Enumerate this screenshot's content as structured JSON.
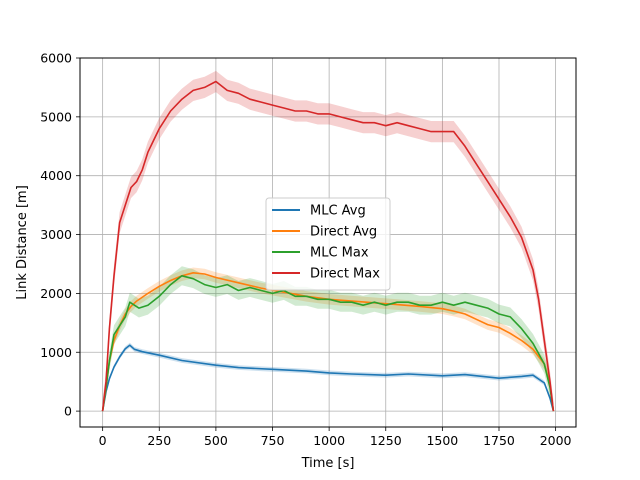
{
  "chart_data": {
    "type": "line",
    "title": "",
    "xlabel": "Time [s]",
    "ylabel": "Link Distance [m]",
    "xlim": [
      -100,
      2090
    ],
    "ylim": [
      -270,
      6000
    ],
    "x_ticks": [
      0,
      250,
      500,
      750,
      1000,
      1250,
      1500,
      1750,
      2000
    ],
    "y_ticks": [
      0,
      1000,
      2000,
      3000,
      4000,
      5000,
      6000
    ],
    "grid": true,
    "legend_position": "center",
    "series": [
      {
        "name": "MLC Avg",
        "color": "#1f77b4",
        "x": [
          0,
          15,
          30,
          50,
          75,
          100,
          120,
          140,
          175,
          250,
          350,
          500,
          600,
          750,
          900,
          1000,
          1100,
          1250,
          1350,
          1500,
          1600,
          1750,
          1850,
          1900,
          1950,
          1975,
          1990
        ],
        "y": [
          0,
          330,
          550,
          750,
          920,
          1060,
          1120,
          1050,
          1010,
          950,
          860,
          780,
          740,
          710,
          680,
          650,
          630,
          610,
          630,
          600,
          620,
          560,
          590,
          610,
          480,
          220,
          0
        ],
        "band": 40
      },
      {
        "name": "Direct Avg",
        "color": "#ff7f0e",
        "x": [
          0,
          15,
          30,
          50,
          75,
          100,
          125,
          150,
          200,
          250,
          300,
          350,
          400,
          450,
          500,
          600,
          700,
          800,
          900,
          1000,
          1100,
          1200,
          1300,
          1400,
          1500,
          1550,
          1600,
          1650,
          1700,
          1750,
          1800,
          1850,
          1900,
          1950,
          1975,
          1990
        ],
        "y": [
          0,
          400,
          850,
          1200,
          1450,
          1650,
          1780,
          1870,
          2000,
          2120,
          2220,
          2300,
          2350,
          2330,
          2270,
          2180,
          2090,
          2020,
          1950,
          1900,
          1870,
          1840,
          1810,
          1780,
          1740,
          1700,
          1650,
          1560,
          1470,
          1420,
          1320,
          1200,
          1050,
          800,
          450,
          0
        ],
        "band": 90
      },
      {
        "name": "MLC Max",
        "color": "#2ca02c",
        "x": [
          0,
          15,
          30,
          50,
          75,
          100,
          120,
          140,
          160,
          200,
          250,
          300,
          350,
          400,
          450,
          500,
          550,
          600,
          650,
          700,
          750,
          800,
          850,
          900,
          950,
          1000,
          1050,
          1100,
          1150,
          1200,
          1250,
          1300,
          1350,
          1400,
          1450,
          1500,
          1550,
          1600,
          1650,
          1700,
          1750,
          1800,
          1850,
          1900,
          1950,
          1975,
          1990
        ],
        "y": [
          0,
          400,
          850,
          1300,
          1450,
          1600,
          1850,
          1800,
          1750,
          1800,
          1950,
          2150,
          2300,
          2250,
          2150,
          2100,
          2150,
          2050,
          2100,
          2050,
          2000,
          2050,
          1950,
          1950,
          1900,
          1900,
          1850,
          1850,
          1800,
          1850,
          1800,
          1850,
          1850,
          1800,
          1800,
          1850,
          1800,
          1850,
          1800,
          1750,
          1650,
          1600,
          1400,
          1150,
          800,
          400,
          0
        ],
        "band": 160
      },
      {
        "name": "Direct Max",
        "color": "#d62728",
        "x": [
          0,
          15,
          30,
          50,
          75,
          100,
          125,
          150,
          175,
          200,
          225,
          250,
          300,
          350,
          400,
          450,
          500,
          550,
          600,
          650,
          700,
          750,
          800,
          850,
          900,
          950,
          1000,
          1050,
          1100,
          1150,
          1200,
          1250,
          1300,
          1350,
          1400,
          1450,
          1500,
          1550,
          1600,
          1650,
          1700,
          1750,
          1800,
          1850,
          1900,
          1925,
          1950,
          1975,
          1990
        ],
        "y": [
          0,
          500,
          1400,
          2300,
          3200,
          3500,
          3800,
          3900,
          4100,
          4400,
          4600,
          4800,
          5100,
          5300,
          5450,
          5500,
          5600,
          5450,
          5400,
          5300,
          5250,
          5200,
          5150,
          5100,
          5100,
          5050,
          5050,
          5000,
          4950,
          4900,
          4900,
          4850,
          4900,
          4850,
          4800,
          4750,
          4750,
          4750,
          4500,
          4200,
          3900,
          3600,
          3300,
          2950,
          2400,
          1900,
          1200,
          500,
          0
        ],
        "band": 180
      }
    ]
  }
}
